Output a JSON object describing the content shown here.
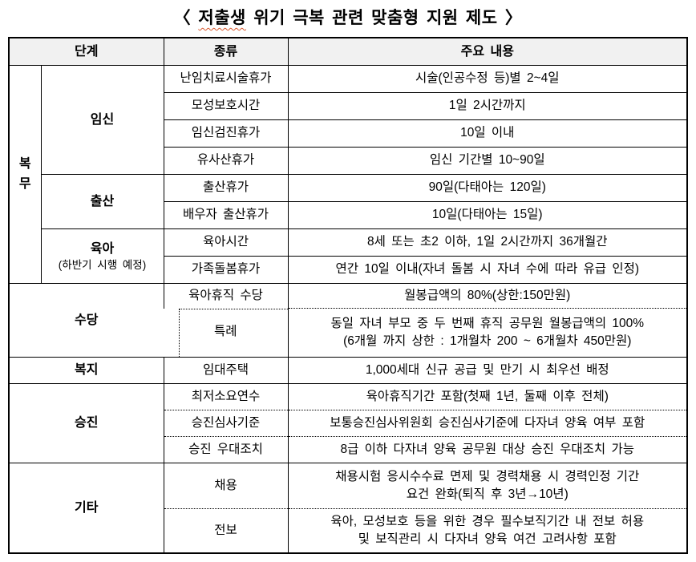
{
  "title": {
    "prefix": "〈 ",
    "underlined": "저출생",
    "rest": " 위기 극복 관련 맞춤형 지원 제도 〉"
  },
  "colors": {
    "header_bg": "#f1f1f1",
    "border": "#000000",
    "spellcheck_underline": "#d9582e"
  },
  "header": {
    "stage": "단계",
    "type": "종류",
    "content": "주요 내용"
  },
  "rows": [
    {
      "group": "복무",
      "stage": "임신",
      "type": "난임치료시술휴가",
      "content": "시술(인공수정 등)별 2~4일"
    },
    {
      "type": "모성보호시간",
      "content": "1일 2시간까지"
    },
    {
      "type": "임신검진휴가",
      "content": "10일 이내"
    },
    {
      "type": "유사산휴가",
      "content": "임신 기간별 10~90일"
    },
    {
      "stage": "출산",
      "type": "출산휴가",
      "content": "90일(다태아는 120일)"
    },
    {
      "type": "배우자 출산휴가",
      "content": "10일(다태아는 15일)"
    },
    {
      "stage": "육아",
      "stage_note": "(하반기 시행 예정)",
      "type": "육아시간",
      "content": "8세 또는 초2 이하, 1일 2시간까지 36개월간"
    },
    {
      "type": "가족돌봄휴가",
      "content": "연간 10일 이내(자녀 돌봄 시 자녀 수에 따라 유급 인정)"
    },
    {
      "stage": "수당",
      "type": "육아휴직 수당",
      "content": "월봉급액의 80%(상한:150만원)"
    },
    {
      "type": "특례",
      "content": "동일 자녀 부모 중 두 번째 휴직 공무원 월봉급액의 100%",
      "content2": "(6개월 까지 상한 : 1개월차 200 ~ 6개월차 450만원)"
    },
    {
      "stage": "복지",
      "type": "임대주택",
      "content": "1,000세대 신규 공급 및 만기 시 최우선 배정"
    },
    {
      "stage": "승진",
      "type": "최저소요연수",
      "content": "육아휴직기간 포함(첫째 1년, 둘째 이후 전체)"
    },
    {
      "type": "승진심사기준",
      "content": "보통승진심사위원회 승진심사기준에 다자녀 양육 여부 포함"
    },
    {
      "type": "승진 우대조치",
      "content": "8급 이하 다자녀 양육 공무원 대상 승진 우대조치 가능"
    },
    {
      "stage": "기타",
      "type": "채용",
      "content": "채용시험 응시수수료 면제 및 경력채용 시 경력인정 기간",
      "content2": "요건 완화(퇴직 후 3년→10년)"
    },
    {
      "type": "전보",
      "content": "육아, 모성보호 등을 위한 경우 필수보직기간 내 전보 허용",
      "content2": "및 보직관리 시 다자녀 양육 여건 고려사항 포함"
    }
  ]
}
